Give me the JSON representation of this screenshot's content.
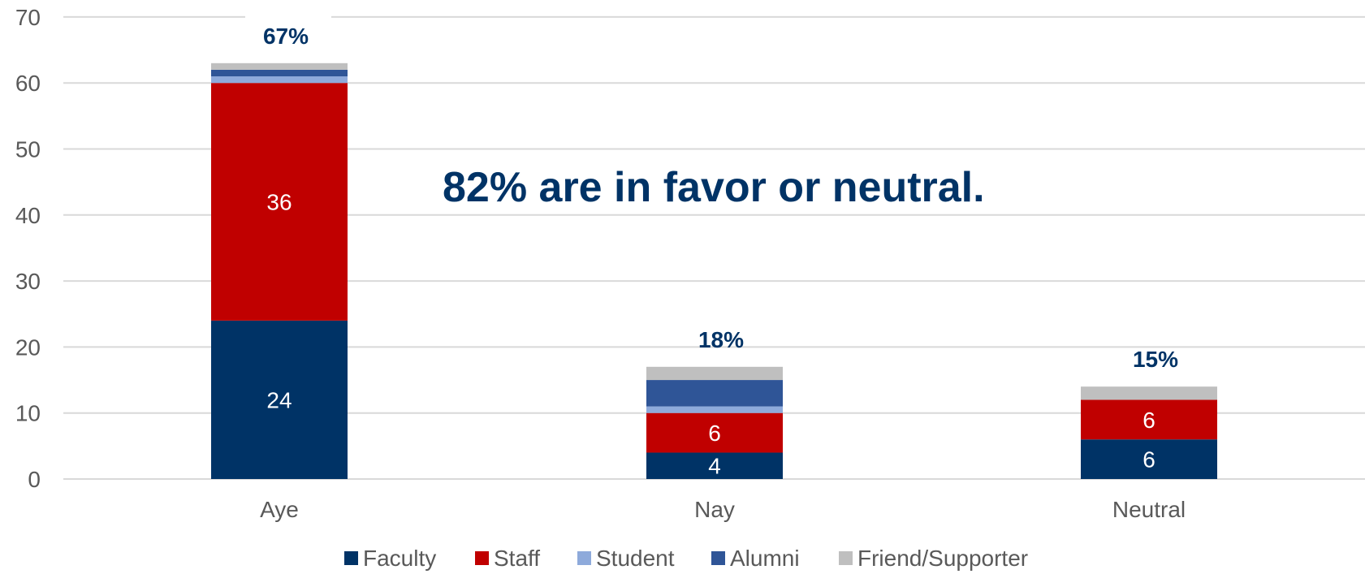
{
  "chart_data": {
    "type": "bar",
    "stacked": true,
    "categories": [
      "Aye",
      "Nay",
      "Neutral"
    ],
    "series": [
      {
        "name": "Faculty",
        "color": "#003366",
        "values": [
          24,
          4,
          6
        ]
      },
      {
        "name": "Staff",
        "color": "#c00000",
        "values": [
          36,
          6,
          6
        ]
      },
      {
        "name": "Student",
        "color": "#8eaadb",
        "values": [
          1,
          1,
          0
        ]
      },
      {
        "name": "Alumni",
        "color": "#2f5597",
        "values": [
          1,
          4,
          0
        ]
      },
      {
        "name": "Friend/Supporter",
        "color": "#bfbfbf",
        "values": [
          1,
          2,
          2
        ]
      }
    ],
    "data_labels": {
      "Faculty": [
        "24",
        "4",
        "6"
      ],
      "Staff": [
        "36",
        "6",
        "6"
      ]
    },
    "percent_labels": [
      "67%",
      "18%",
      "15%"
    ],
    "annotation": "82% are in favor or neutral.",
    "ylim": [
      0,
      70
    ],
    "yticks": [
      0,
      10,
      20,
      30,
      40,
      50,
      60,
      70
    ],
    "grid": true,
    "legend_position": "bottom",
    "accent_color": "#003366"
  }
}
